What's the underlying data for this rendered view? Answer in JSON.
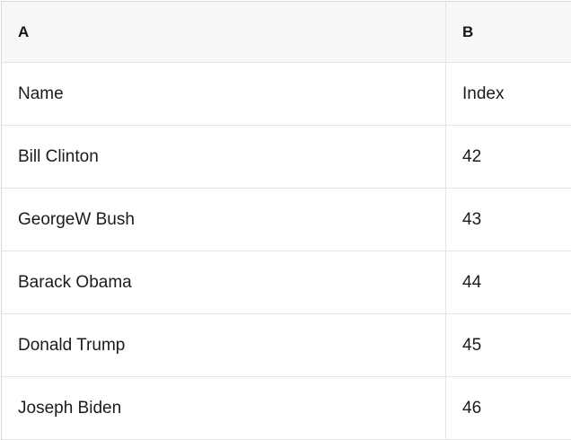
{
  "table": {
    "headers": {
      "a": "A",
      "b": "B"
    },
    "field_row": {
      "a": "Name",
      "b": "Index"
    },
    "rows": [
      {
        "a": "Bill Clinton",
        "b": "42"
      },
      {
        "a": "GeorgeW Bush",
        "b": "43"
      },
      {
        "a": "Barack Obama",
        "b": "44"
      },
      {
        "a": "Donald Trump",
        "b": "45"
      },
      {
        "a": "Joseph Biden",
        "b": "46"
      }
    ],
    "colors": {
      "header_background": "#f7f7f7",
      "outer_border": "#d9d9d9",
      "grid_line": "#e4e4e4",
      "text": "#1b1b1b"
    }
  }
}
